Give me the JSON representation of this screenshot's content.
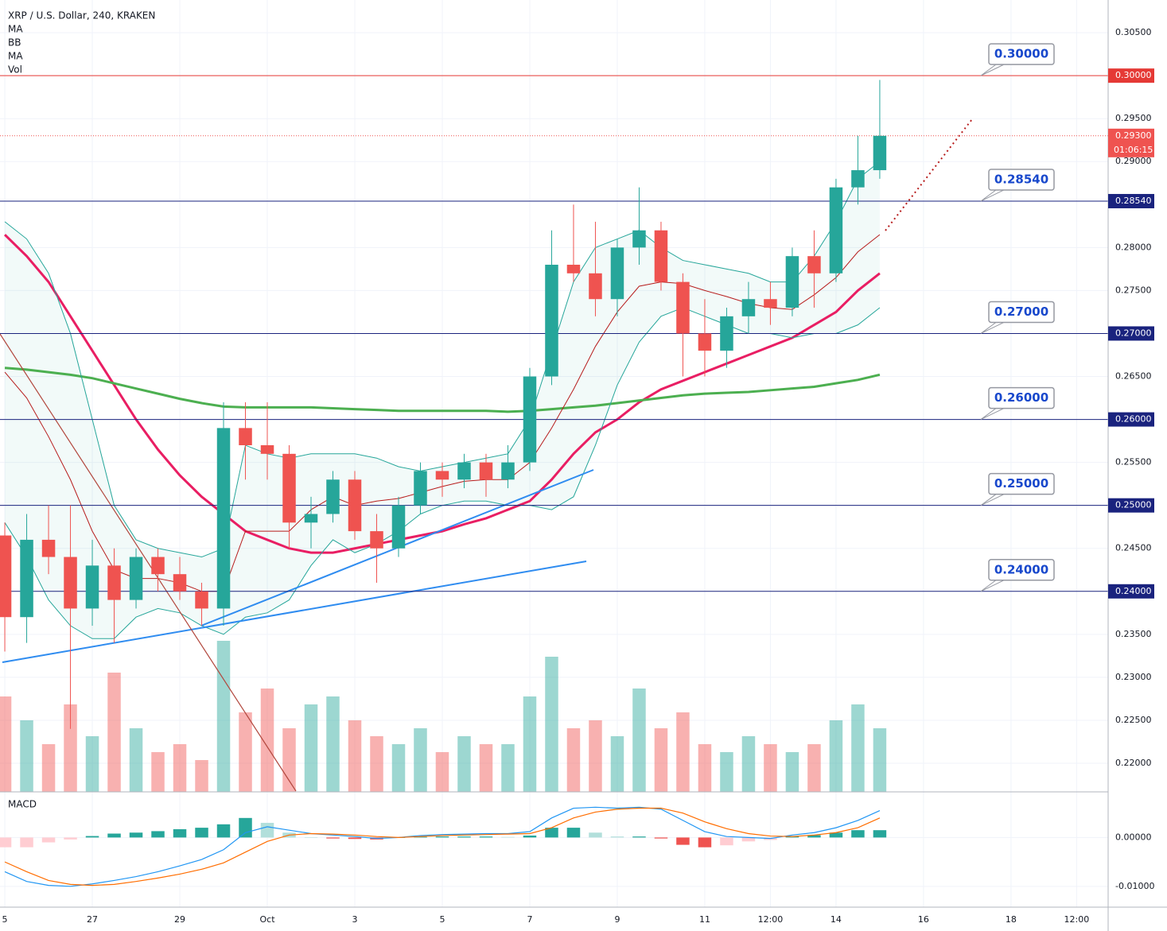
{
  "chart_data": {
    "type": "candlestick",
    "title": "XRP / U.S. Dollar, 240, KRAKEN",
    "up_color": "#26a69a",
    "down_color": "#ef5350",
    "x": [
      25,
      25.5,
      26,
      26.5,
      27,
      27.5,
      28,
      28.5,
      29,
      29.5,
      30,
      30.5,
      31,
      31.5,
      32,
      32.5,
      33,
      33.5,
      34,
      34.5,
      35,
      35.5,
      36,
      36.5,
      37,
      37.5,
      38,
      38.5,
      39,
      39.5,
      40,
      40.5,
      41,
      41.5,
      42,
      42.5,
      43,
      43.5,
      44,
      44.5,
      45
    ],
    "open": [
      0.2465,
      0.237,
      0.246,
      0.244,
      0.238,
      0.243,
      0.239,
      0.244,
      0.242,
      0.24,
      0.238,
      0.259,
      0.257,
      0.256,
      0.248,
      0.249,
      0.253,
      0.247,
      0.245,
      0.25,
      0.254,
      0.253,
      0.255,
      0.253,
      0.255,
      0.265,
      0.278,
      0.277,
      0.274,
      0.28,
      0.282,
      0.276,
      0.27,
      0.268,
      0.272,
      0.274,
      0.273,
      0.279,
      0.277,
      0.287,
      0.289
    ],
    "high": [
      0.248,
      0.249,
      0.25,
      0.25,
      0.246,
      0.245,
      0.245,
      0.245,
      0.244,
      0.241,
      0.262,
      0.262,
      0.262,
      0.257,
      0.251,
      0.254,
      0.254,
      0.249,
      0.251,
      0.255,
      0.255,
      0.256,
      0.256,
      0.257,
      0.266,
      0.282,
      0.285,
      0.283,
      0.281,
      0.287,
      0.283,
      0.277,
      0.274,
      0.273,
      0.276,
      0.276,
      0.28,
      0.282,
      0.288,
      0.293,
      0.2995
    ],
    "low": [
      0.233,
      0.234,
      0.242,
      0.224,
      0.236,
      0.234,
      0.238,
      0.24,
      0.239,
      0.236,
      0.236,
      0.253,
      0.253,
      0.245,
      0.245,
      0.248,
      0.246,
      0.241,
      0.244,
      0.249,
      0.251,
      0.252,
      0.251,
      0.252,
      0.254,
      0.264,
      0.276,
      0.272,
      0.272,
      0.278,
      0.275,
      0.265,
      0.265,
      0.266,
      0.27,
      0.271,
      0.272,
      0.273,
      0.276,
      0.285,
      0.288
    ],
    "close": [
      0.237,
      0.246,
      0.244,
      0.238,
      0.243,
      0.239,
      0.244,
      0.242,
      0.24,
      0.238,
      0.259,
      0.257,
      0.256,
      0.248,
      0.249,
      0.253,
      0.247,
      0.245,
      0.25,
      0.254,
      0.253,
      0.255,
      0.253,
      0.255,
      0.265,
      0.278,
      0.277,
      0.274,
      0.28,
      0.282,
      0.276,
      0.27,
      0.268,
      0.272,
      0.274,
      0.273,
      0.279,
      0.277,
      0.287,
      0.289,
      0.293
    ],
    "volume": [
      60,
      45,
      30,
      55,
      35,
      75,
      40,
      25,
      30,
      20,
      95,
      50,
      65,
      40,
      55,
      60,
      45,
      35,
      30,
      40,
      25,
      35,
      30,
      30,
      60,
      85,
      40,
      45,
      35,
      65,
      40,
      50,
      30,
      25,
      35,
      30,
      25,
      30,
      45,
      55,
      40
    ],
    "volume_lim": [
      0,
      100
    ],
    "indicators": [
      "MA",
      "BB",
      "MA",
      "Vol"
    ],
    "overlays": [
      {
        "name": "MA",
        "color": "#e91e63",
        "width": 3,
        "values": [
          0.2815,
          0.279,
          0.276,
          0.272,
          0.268,
          0.264,
          0.26,
          0.2565,
          0.2535,
          0.251,
          0.249,
          0.247,
          0.246,
          0.245,
          0.2445,
          0.2445,
          0.245,
          0.2455,
          0.246,
          0.2465,
          0.247,
          0.2478,
          0.2485,
          0.2495,
          0.2505,
          0.253,
          0.256,
          0.2585,
          0.26,
          0.262,
          0.2635,
          0.2645,
          0.2655,
          0.2665,
          0.2675,
          0.2685,
          0.2695,
          0.271,
          0.2725,
          0.275,
          0.277
        ]
      },
      {
        "name": "MA",
        "color": "#4caf50",
        "width": 3,
        "values": [
          0.266,
          0.2658,
          0.2655,
          0.2652,
          0.2648,
          0.2642,
          0.2636,
          0.263,
          0.2624,
          0.2619,
          0.2615,
          0.2614,
          0.2614,
          0.2614,
          0.2614,
          0.2613,
          0.2612,
          0.2611,
          0.261,
          0.261,
          0.261,
          0.261,
          0.261,
          0.2609,
          0.261,
          0.2612,
          0.2614,
          0.2616,
          0.2619,
          0.2622,
          0.2625,
          0.2628,
          0.263,
          0.2631,
          0.2632,
          0.2634,
          0.2636,
          0.2638,
          0.2642,
          0.2646,
          0.2652
        ]
      },
      {
        "name": "BB",
        "color": "#26a69a",
        "width": 1,
        "values": [
          0.283,
          0.281,
          0.277,
          0.27,
          0.26,
          0.25,
          0.246,
          0.245,
          0.2445,
          0.244,
          0.245,
          0.257,
          0.256,
          0.2555,
          0.256,
          0.256,
          0.256,
          0.2555,
          0.2545,
          0.254,
          0.2545,
          0.255,
          0.2555,
          0.256,
          0.26,
          0.268,
          0.276,
          0.28,
          0.281,
          0.282,
          0.28,
          0.2785,
          0.278,
          0.2775,
          0.277,
          0.276,
          0.276,
          0.279,
          0.283,
          0.288,
          0.29
        ]
      },
      {
        "name": "BB",
        "color": "#b71c1c",
        "width": 1,
        "values": [
          0.2655,
          0.2625,
          0.258,
          0.253,
          0.247,
          0.2425,
          0.2415,
          0.2415,
          0.241,
          0.24,
          0.24,
          0.247,
          0.247,
          0.247,
          0.2495,
          0.251,
          0.25,
          0.2505,
          0.2508,
          0.2515,
          0.2522,
          0.2528,
          0.253,
          0.253,
          0.255,
          0.259,
          0.2635,
          0.2685,
          0.2725,
          0.2755,
          0.276,
          0.2758,
          0.275,
          0.2743,
          0.2735,
          0.273,
          0.2728,
          0.2745,
          0.2765,
          0.2795,
          0.2815
        ]
      },
      {
        "name": "BB",
        "color": "#26a69a",
        "width": 1,
        "values": [
          0.248,
          0.244,
          0.239,
          0.236,
          0.2345,
          0.2345,
          0.237,
          0.238,
          0.2375,
          0.236,
          0.235,
          0.237,
          0.2375,
          0.239,
          0.243,
          0.246,
          0.2445,
          0.2455,
          0.247,
          0.249,
          0.25,
          0.2505,
          0.2505,
          0.25,
          0.25,
          0.2495,
          0.251,
          0.257,
          0.264,
          0.269,
          0.272,
          0.273,
          0.272,
          0.271,
          0.27,
          0.27,
          0.2695,
          0.27,
          0.27,
          0.271,
          0.273
        ]
      }
    ],
    "xlim": [
      24.89,
      50.22
    ],
    "xticks": [
      {
        "value": 25,
        "label": "5"
      },
      27,
      29,
      {
        "value": 31,
        "label": "Oct"
      },
      {
        "value": 33,
        "label": "3"
      },
      {
        "value": 35,
        "label": "5"
      },
      {
        "value": 37,
        "label": "7"
      },
      {
        "value": 39,
        "label": "9"
      },
      {
        "value": 41,
        "label": "11"
      },
      {
        "value": 42.5,
        "label": "12:00"
      },
      {
        "value": 44,
        "label": "14"
      },
      {
        "value": 46,
        "label": "16"
      },
      {
        "value": 48,
        "label": "18"
      },
      {
        "value": 49.5,
        "label": "12:00"
      }
    ],
    "ylim": [
      0.21667,
      0.3088
    ],
    "yticks": [
      {
        "value": 0.305,
        "label": "0.30500"
      },
      {
        "value": 0.295,
        "label": "0.29500"
      },
      {
        "value": 0.29,
        "label": "0.29000"
      },
      {
        "value": 0.28,
        "label": "0.28000"
      },
      {
        "value": 0.275,
        "label": "0.27500"
      },
      {
        "value": 0.265,
        "label": "0.26500"
      },
      {
        "value": 0.255,
        "label": "0.25500"
      },
      {
        "value": 0.245,
        "label": "0.24500"
      },
      {
        "value": 0.235,
        "label": "0.23500"
      },
      {
        "value": 0.23,
        "label": "0.23000"
      },
      {
        "value": 0.225,
        "label": "0.22500"
      },
      {
        "value": 0.22,
        "label": "0.22000"
      }
    ],
    "levels": [
      {
        "value": 0.3,
        "label": "0.30000",
        "color": "#e53935"
      },
      {
        "value": 0.2854,
        "label": "0.28540",
        "color": "#1a237e"
      },
      {
        "value": 0.27,
        "label": "0.27000",
        "color": "#1a237e"
      },
      {
        "value": 0.26,
        "label": "0.26000",
        "color": "#1a237e"
      },
      {
        "value": 0.25,
        "label": "0.25000",
        "color": "#1a237e"
      },
      {
        "value": 0.24,
        "label": "0.24000",
        "color": "#1a237e"
      }
    ],
    "last_price": {
      "value": 0.293,
      "label": "0.29300",
      "countdown": "01:06:15",
      "color": "#ef5350"
    },
    "macd": {
      "title": "MACD",
      "macd_color": "#2196f3",
      "signal_color": "#ff6d00",
      "macd": [
        -0.007,
        -0.009,
        -0.0098,
        -0.01,
        -0.0095,
        -0.0088,
        -0.008,
        -0.007,
        -0.0058,
        -0.0045,
        -0.0025,
        0.001,
        0.0022,
        0.0015,
        0.0008,
        0.0005,
        0.0002,
        -0.0002,
        0,
        0.0004,
        0.0006,
        0.0007,
        0.0008,
        0.0008,
        0.0012,
        0.004,
        0.006,
        0.0062,
        0.006,
        0.0062,
        0.0058,
        0.0035,
        0.0012,
        0.0002,
        0,
        -0.0002,
        0.0005,
        0.001,
        0.002,
        0.0035,
        0.0055
      ],
      "signal": [
        -0.005,
        -0.007,
        -0.0088,
        -0.0096,
        -0.0098,
        -0.0096,
        -0.009,
        -0.0083,
        -0.0075,
        -0.0065,
        -0.0052,
        -0.003,
        -0.0008,
        0.0005,
        0.0008,
        0.0007,
        0.0005,
        0.0002,
        0,
        0.0002,
        0.0004,
        0.0005,
        0.0006,
        0.0007,
        0.0008,
        0.002,
        0.004,
        0.0052,
        0.0058,
        0.006,
        0.006,
        0.005,
        0.0032,
        0.0018,
        0.0008,
        0.0003,
        0.0002,
        0.0005,
        0.001,
        0.002,
        0.004
      ],
      "histogram": [
        -0.002,
        -0.002,
        -0.001,
        -0.0004,
        0.0003,
        0.0008,
        0.001,
        0.0013,
        0.0017,
        0.002,
        0.0027,
        0.004,
        0.003,
        0.001,
        0,
        -0.0002,
        -0.0003,
        -0.0004,
        0,
        0.0002,
        0.0002,
        0.0002,
        0.0002,
        0.0001,
        0.0004,
        0.002,
        0.002,
        0.001,
        0.0002,
        0.0002,
        -0.0002,
        -0.0015,
        -0.002,
        -0.0016,
        -0.0008,
        -0.0005,
        0.0003,
        0.0005,
        0.001,
        0.0015,
        0.0015
      ],
      "ylim": [
        -0.01426,
        0.00918
      ],
      "yticks": [
        {
          "value": 0,
          "label": "0.00000"
        },
        {
          "value": -0.01,
          "label": "-0.01000"
        }
      ]
    }
  }
}
